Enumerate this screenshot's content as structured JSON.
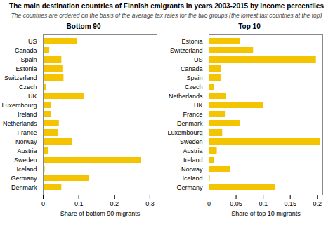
{
  "title": "The main destination countries of Finnish emigrants in years 2003-2015 by income percentiles",
  "subtitle": "The countries are ordered on the basis of the average tax rates for the two groups (the lowest tax countries at the top)",
  "chart_data": [
    {
      "type": "bar",
      "orientation": "horizontal",
      "title": "Bottom 90",
      "xlabel": "Share of bottom 90 migrants",
      "categories": [
        "US",
        "Canada",
        "Spain",
        "Estonia",
        "Switzerland",
        "Czech",
        "UK",
        "Luxembourg",
        "Ireland",
        "Netherlands",
        "France",
        "Norway",
        "Austria",
        "Sweden",
        "Iceland",
        "Germany",
        "Denmark"
      ],
      "values": [
        0.095,
        0.018,
        0.052,
        0.055,
        0.058,
        0.008,
        0.115,
        0.022,
        0.022,
        0.045,
        0.042,
        0.082,
        0.016,
        0.275,
        0.005,
        0.13,
        0.052
      ],
      "color": "#F5C400",
      "xlim": [
        0,
        0.32
      ],
      "xticks": [
        0,
        0.1,
        0.2,
        0.3
      ],
      "grid": false
    },
    {
      "type": "bar",
      "orientation": "horizontal",
      "title": "Top 10",
      "xlabel": "Share of top 10 migrants",
      "categories": [
        "Estonia",
        "Switzerland",
        "US",
        "Canada",
        "Spain",
        "Czech",
        "Netherlands",
        "UK",
        "France",
        "Denmark",
        "Luxembourg",
        "Sweden",
        "Austria",
        "Ireland",
        "Norway",
        "Iceland",
        "Germany"
      ],
      "values": [
        0.057,
        0.082,
        0.198,
        0.022,
        0.022,
        0.01,
        0.032,
        0.1,
        0.03,
        0.057,
        0.025,
        0.205,
        0.015,
        0.01,
        0.04,
        0.002,
        0.122
      ],
      "color": "#F5C400",
      "xlim": [
        0,
        0.21
      ],
      "xticks": [
        0,
        0.05,
        0.1,
        0.15,
        0.2
      ],
      "grid": false
    }
  ]
}
